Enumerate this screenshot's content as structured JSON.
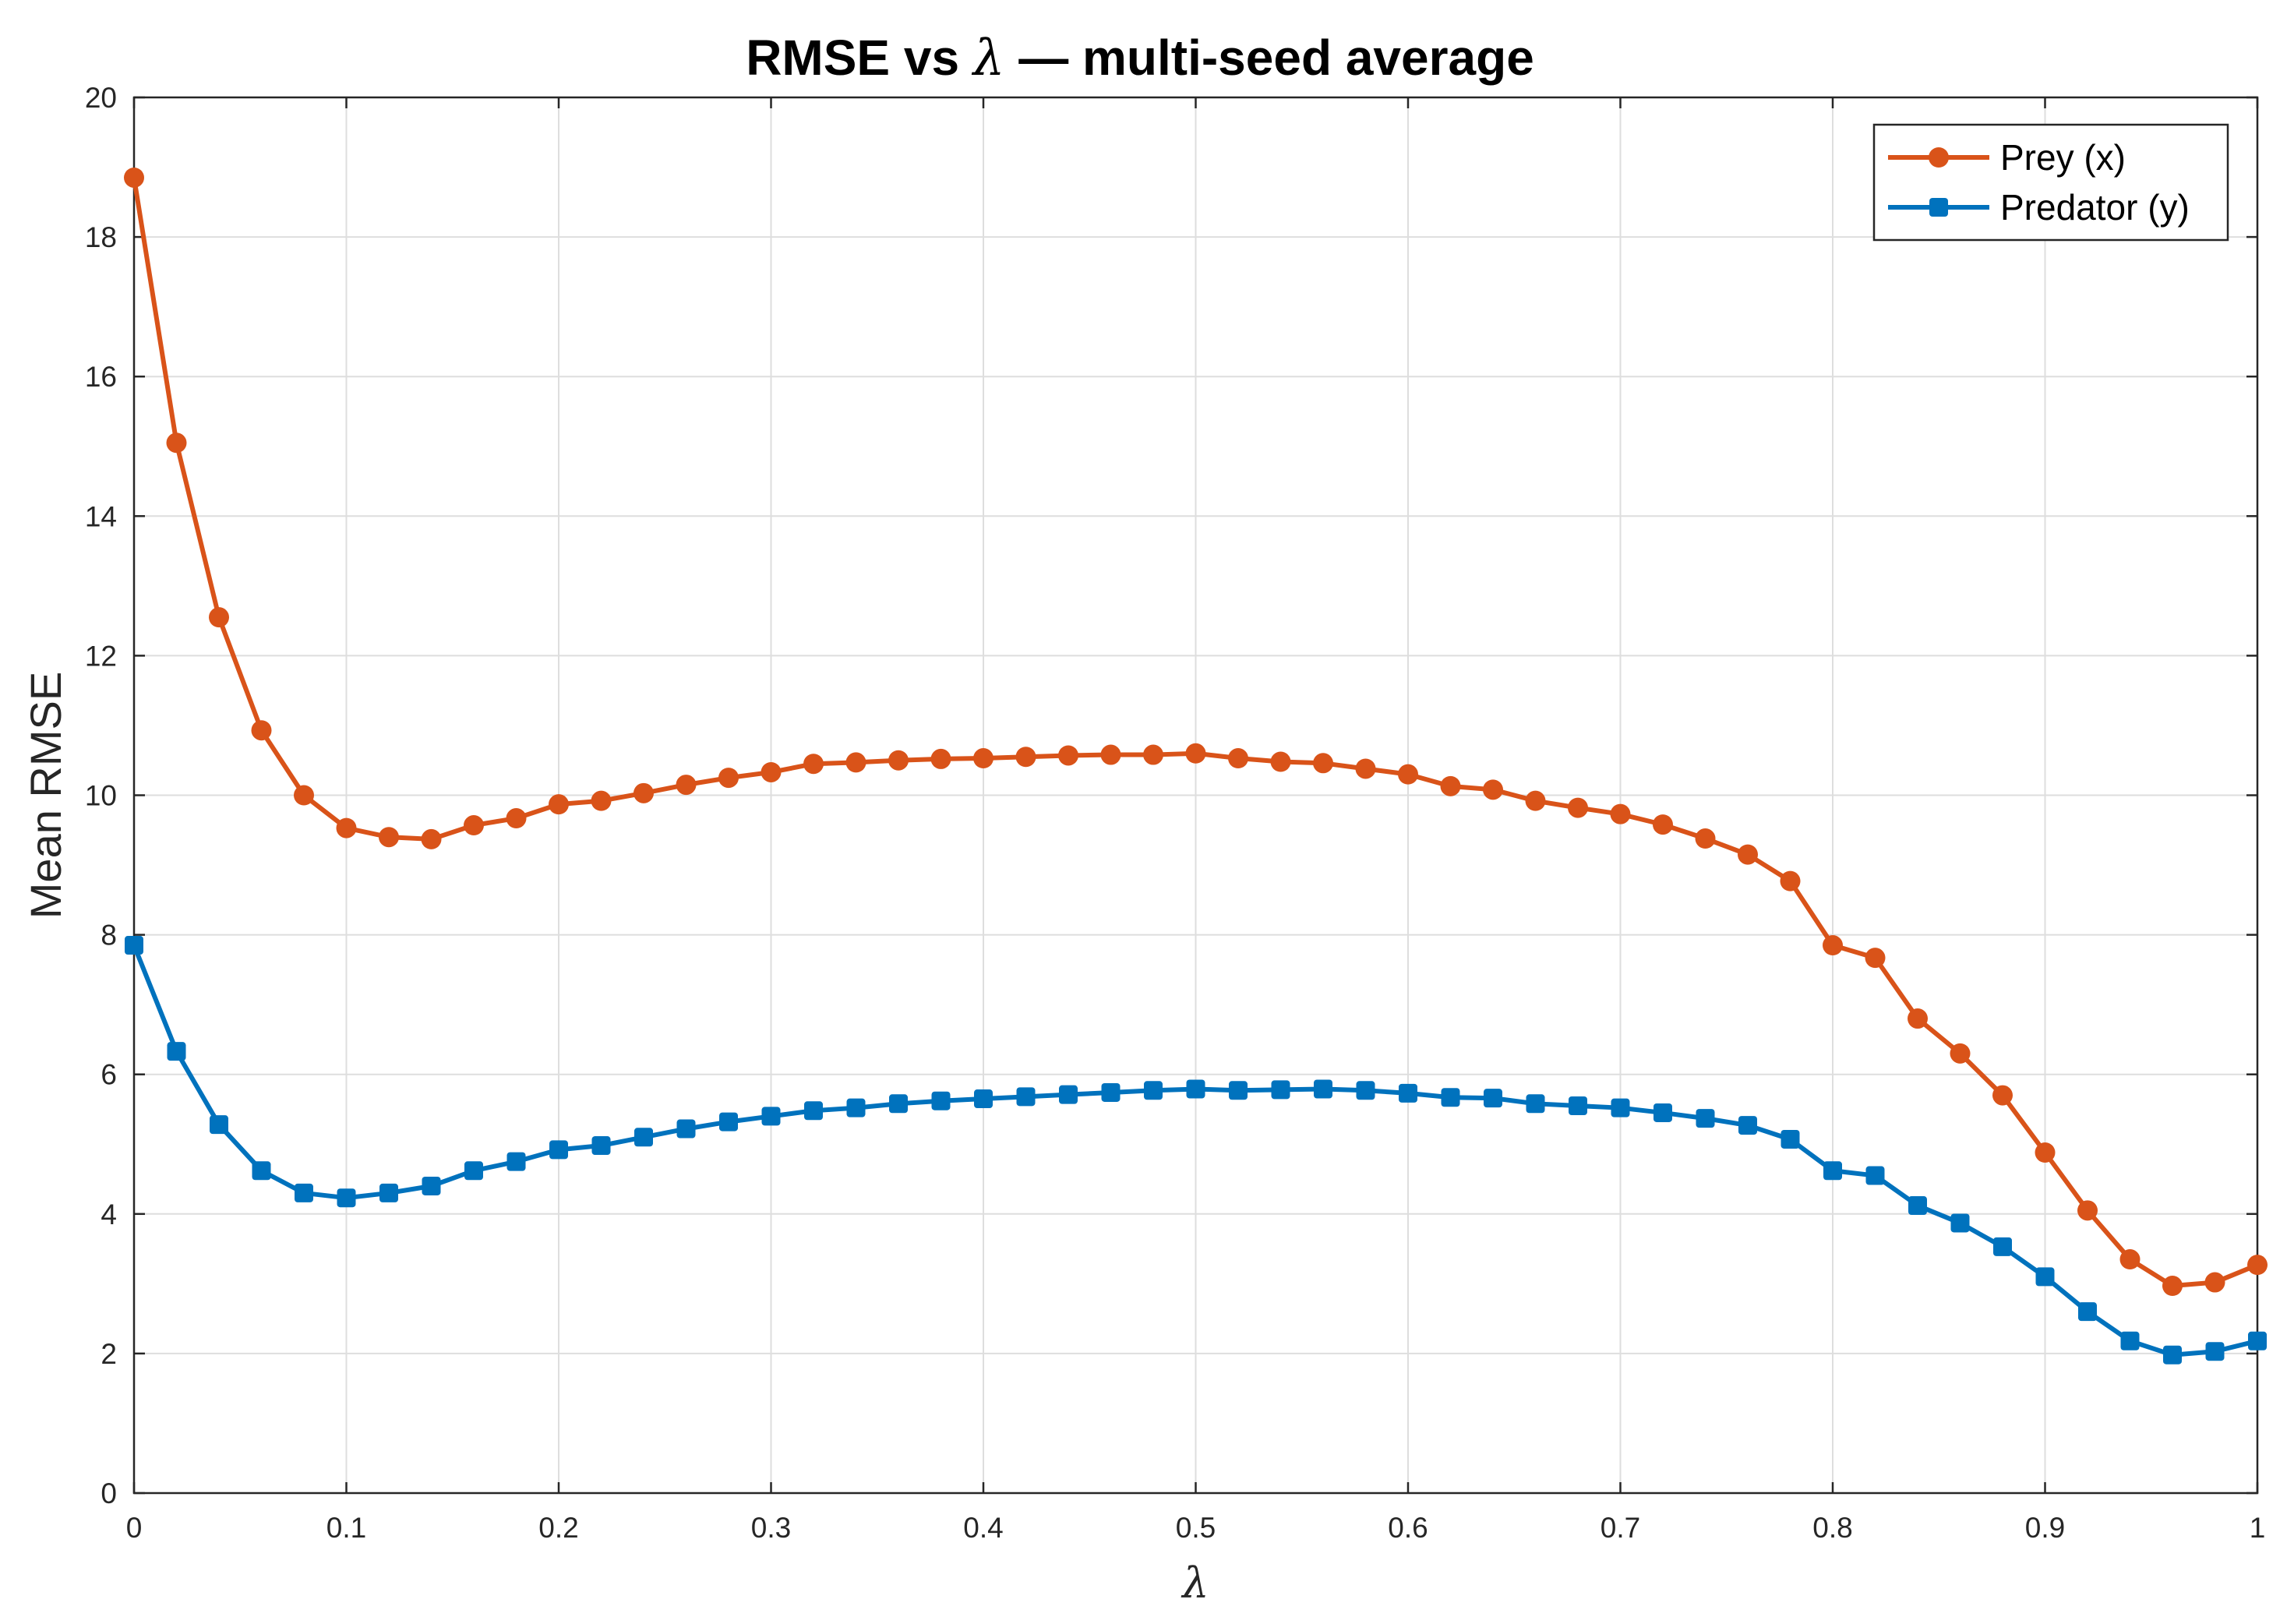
{
  "chart_data": {
    "type": "line",
    "title": "RMSE vs λ — multi-seed average",
    "title_prefix": "RMSE vs ",
    "title_symbol": "λ",
    "title_suffix": " — multi-seed average",
    "xlabel": "λ",
    "ylabel": "Mean RMSE",
    "xlim": [
      0,
      1
    ],
    "ylim": [
      0,
      20
    ],
    "xticks": [
      0,
      0.1,
      0.2,
      0.3,
      0.4,
      0.5,
      0.6,
      0.7,
      0.8,
      0.9,
      1
    ],
    "xtick_labels": [
      "0",
      "0.1",
      "0.2",
      "0.3",
      "0.4",
      "0.5",
      "0.6",
      "0.7",
      "0.8",
      "0.9",
      "1"
    ],
    "yticks": [
      0,
      2,
      4,
      6,
      8,
      10,
      12,
      14,
      16,
      18,
      20
    ],
    "ytick_labels": [
      "0",
      "2",
      "4",
      "6",
      "8",
      "10",
      "12",
      "14",
      "16",
      "18",
      "20"
    ],
    "grid": true,
    "legend_position": "top-right",
    "x": [
      0,
      0.02,
      0.04,
      0.06,
      0.08,
      0.1,
      0.12,
      0.14,
      0.16,
      0.18,
      0.2,
      0.22,
      0.24,
      0.26,
      0.28,
      0.3,
      0.32,
      0.34,
      0.36,
      0.38,
      0.4,
      0.42,
      0.44,
      0.46,
      0.48,
      0.5,
      0.52,
      0.54,
      0.56,
      0.58,
      0.6,
      0.62,
      0.64,
      0.66,
      0.68,
      0.7,
      0.72,
      0.74,
      0.76,
      0.78,
      0.8,
      0.82,
      0.84,
      0.86,
      0.88,
      0.9,
      0.92,
      0.94,
      0.96,
      0.98,
      1
    ],
    "series": [
      {
        "name": "Prey (x)",
        "color": "#D95319",
        "marker": "circle",
        "values": [
          18.85,
          15.05,
          12.55,
          10.93,
          10.0,
          9.53,
          9.4,
          9.37,
          9.57,
          9.67,
          9.87,
          9.92,
          10.03,
          10.15,
          10.25,
          10.33,
          10.45,
          10.47,
          10.5,
          10.52,
          10.53,
          10.55,
          10.57,
          10.58,
          10.58,
          10.6,
          10.53,
          10.48,
          10.46,
          10.38,
          10.3,
          10.13,
          10.08,
          9.92,
          9.82,
          9.73,
          9.58,
          9.38,
          9.15,
          8.77,
          7.85,
          7.67,
          6.8,
          6.3,
          5.7,
          4.88,
          4.05,
          3.35,
          2.97,
          3.02,
          3.27
        ]
      },
      {
        "name": "Predator (y)",
        "color": "#0072BD",
        "marker": "square",
        "values": [
          7.85,
          6.33,
          5.28,
          4.62,
          4.3,
          4.23,
          4.3,
          4.4,
          4.62,
          4.75,
          4.92,
          4.98,
          5.1,
          5.22,
          5.32,
          5.4,
          5.48,
          5.52,
          5.58,
          5.62,
          5.65,
          5.68,
          5.71,
          5.74,
          5.77,
          5.79,
          5.77,
          5.78,
          5.79,
          5.77,
          5.73,
          5.67,
          5.66,
          5.58,
          5.55,
          5.52,
          5.45,
          5.37,
          5.27,
          5.07,
          4.62,
          4.55,
          4.12,
          3.87,
          3.53,
          3.1,
          2.6,
          2.18,
          1.98,
          2.03,
          2.18
        ]
      }
    ]
  }
}
